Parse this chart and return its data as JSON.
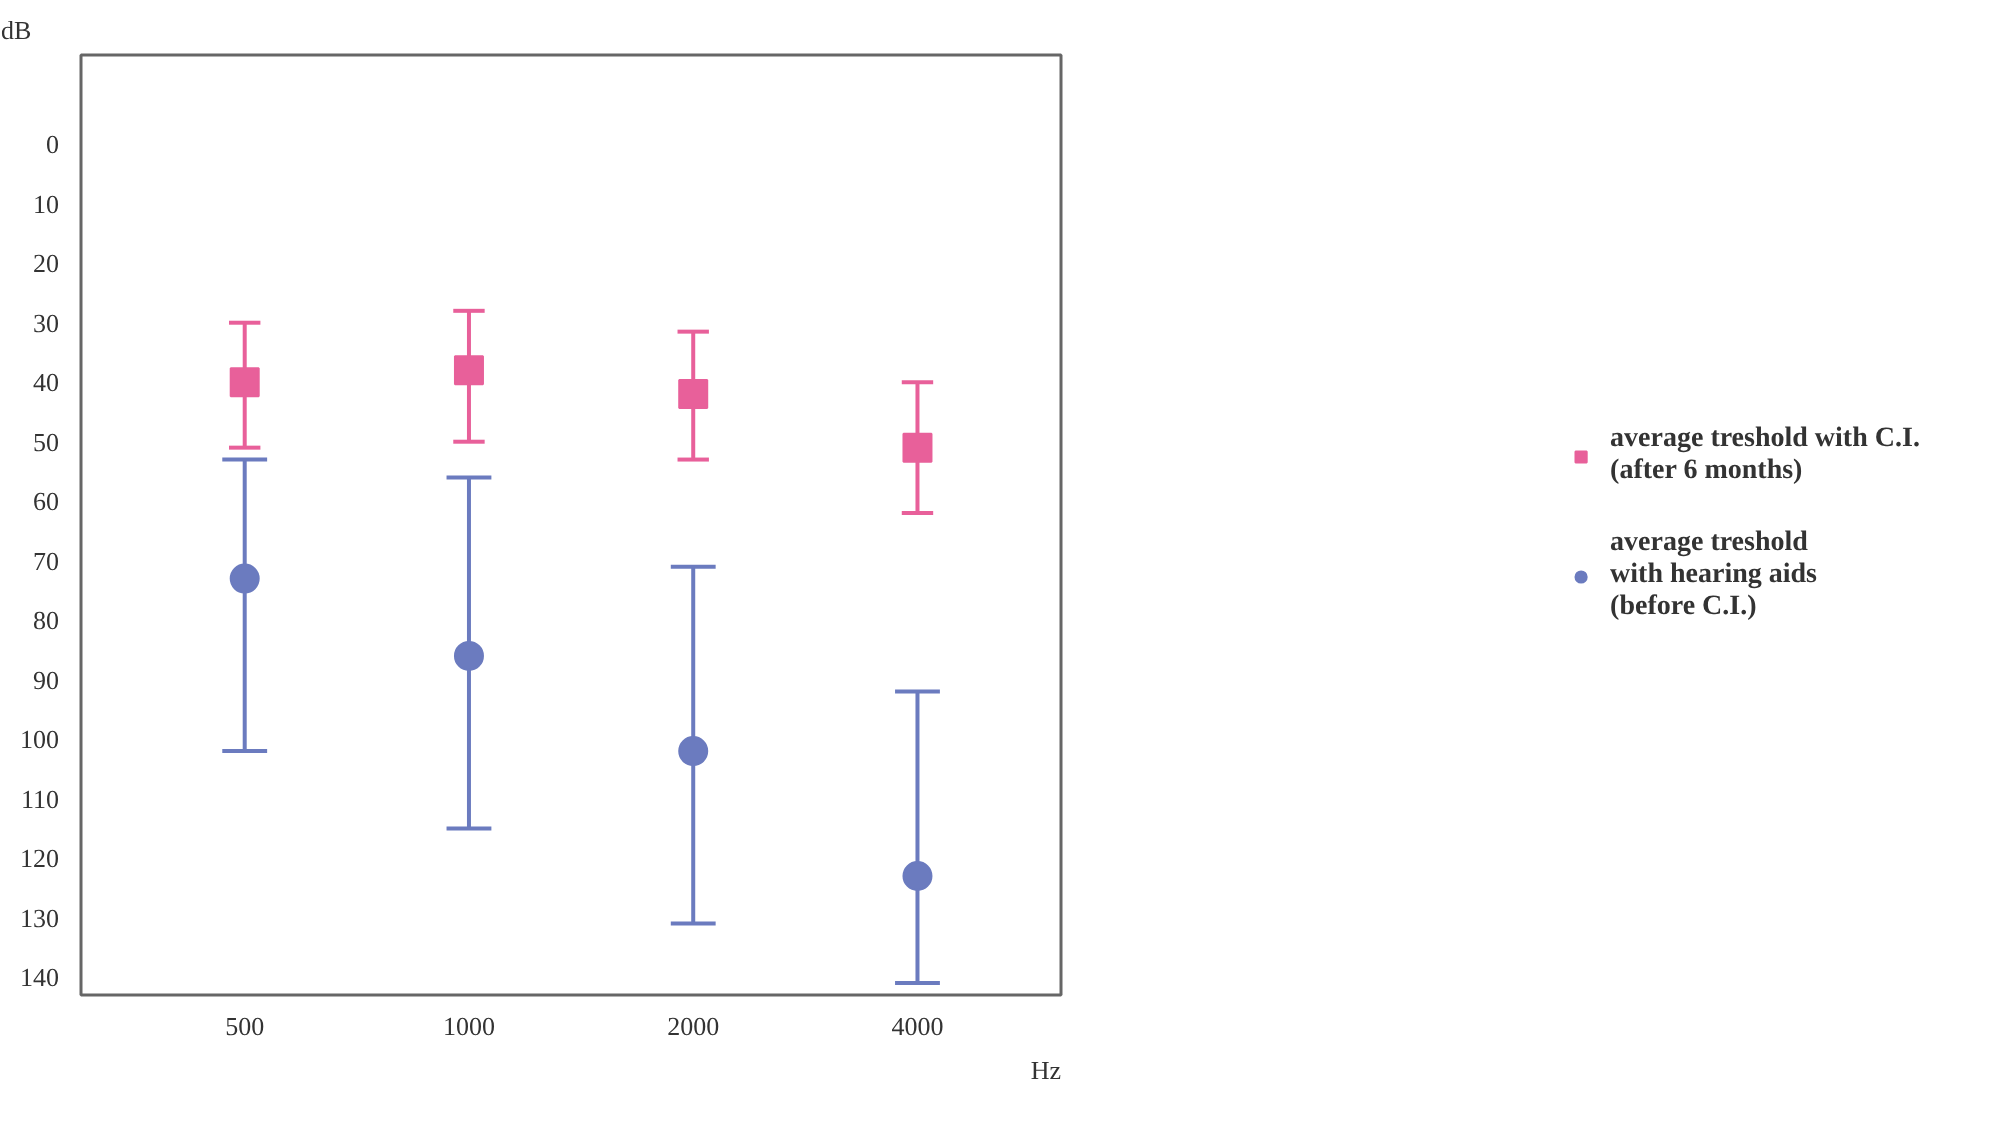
{
  "chart_data": {
    "type": "scatter",
    "xlabel": "Hz",
    "ylabel": "dB",
    "categories": [
      "500",
      "1000",
      "2000",
      "4000"
    ],
    "series": [
      {
        "name": "average treshold with C.I.\n(after 6 months)",
        "color": "#e8609a",
        "marker": "square",
        "values": [
          40,
          38,
          42,
          51
        ],
        "errors": [
          [
            30,
            51
          ],
          [
            28,
            50
          ],
          [
            31.5,
            53
          ],
          [
            40,
            62
          ]
        ]
      },
      {
        "name": "average treshold\nwith hearing aids\n(before C.I.)",
        "color": "#6b7bbf",
        "marker": "circle",
        "values": [
          73,
          86,
          102,
          123
        ],
        "errors": [
          [
            53,
            102
          ],
          [
            56,
            115
          ],
          [
            71,
            131
          ],
          [
            92,
            141
          ]
        ]
      }
    ],
    "ylim": [
      143,
      -15
    ],
    "yticks": [
      0,
      10,
      20,
      30,
      40,
      50,
      60,
      70,
      80,
      90,
      100,
      110,
      120,
      130,
      140
    ],
    "grid": false,
    "legend": "right"
  }
}
